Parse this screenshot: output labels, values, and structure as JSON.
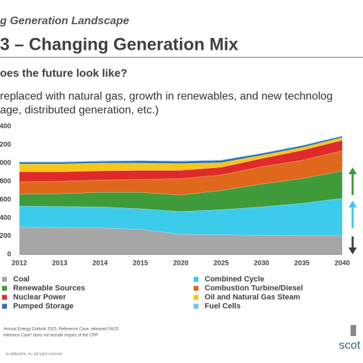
{
  "header": {
    "section": "g Generation Landscape",
    "title": "3 – Changing Generation Mix",
    "question": "oes the future look like?",
    "body": [
      "replaced with natural gas, growth in renewables, and new technolog",
      "age, distributed generation, etc.)"
    ]
  },
  "chart_data": {
    "type": "area",
    "stacked": true,
    "categories": [
      "2012",
      "2013",
      "2014",
      "2015",
      "2020",
      "2025",
      "2030",
      "2035",
      "2040"
    ],
    "series": [
      {
        "name": "Coal",
        "color": "#a6a6a6",
        "values": [
          300,
          295,
          290,
          275,
          220,
          215,
          210,
          205,
          205
        ]
      },
      {
        "name": "Combined Cycle",
        "color": "#3ccbea",
        "values": [
          230,
          230,
          230,
          225,
          250,
          275,
          310,
          355,
          410
        ]
      },
      {
        "name": "Renewable Sources",
        "color": "#3f9a3a",
        "values": [
          128,
          140,
          160,
          180,
          180,
          210,
          250,
          270,
          300
        ]
      },
      {
        "name": "Combustion Turbine/Diesel",
        "color": "#e0681c",
        "values": [
          137,
          135,
          135,
          140,
          180,
          170,
          190,
          200,
          220
        ]
      },
      {
        "name": "Nuclear Power",
        "color": "#e02a2a",
        "values": [
          110,
          105,
          100,
          100,
          90,
          85,
          90,
          110,
          115
        ]
      },
      {
        "name": "Oil and Natural Gas Steam",
        "color": "#f6c619",
        "values": [
          85,
          85,
          85,
          80,
          75,
          50,
          35,
          30,
          30
        ]
      },
      {
        "name": "Pumped Storage",
        "color": "#2c6fb5",
        "values": [
          20,
          20,
          20,
          25,
          25,
          25,
          20,
          20,
          15
        ]
      },
      {
        "name": "Fuel Cells",
        "color": "#6fc3e6",
        "values": [
          5,
          5,
          5,
          5,
          5,
          5,
          5,
          5,
          5
        ]
      }
    ],
    "legend_order": [
      0,
      1,
      2,
      3,
      4,
      5,
      6,
      7
    ],
    "ylim": [
      0,
      1400
    ],
    "yticks": [
      0,
      {
        "value": 200,
        "label": "200"
      },
      {
        "value": 400,
        "label": "400"
      },
      {
        "value": 600,
        "label": "600"
      },
      {
        "value": 800,
        "label": "800"
      },
      {
        "value": 1000,
        "label": "000"
      },
      {
        "value": 1200,
        "label": "200"
      },
      {
        "value": 1400,
        "label": "400"
      }
    ]
  },
  "footer": {
    "notes": [
      "Annual Energy Outlook 2015, Reference Case, released 04/15",
      "eference Case\" does not include impact of the CPP"
    ],
    "copyright": "ScottMadden, Inc. All rights reserved.",
    "logo": "scot"
  }
}
